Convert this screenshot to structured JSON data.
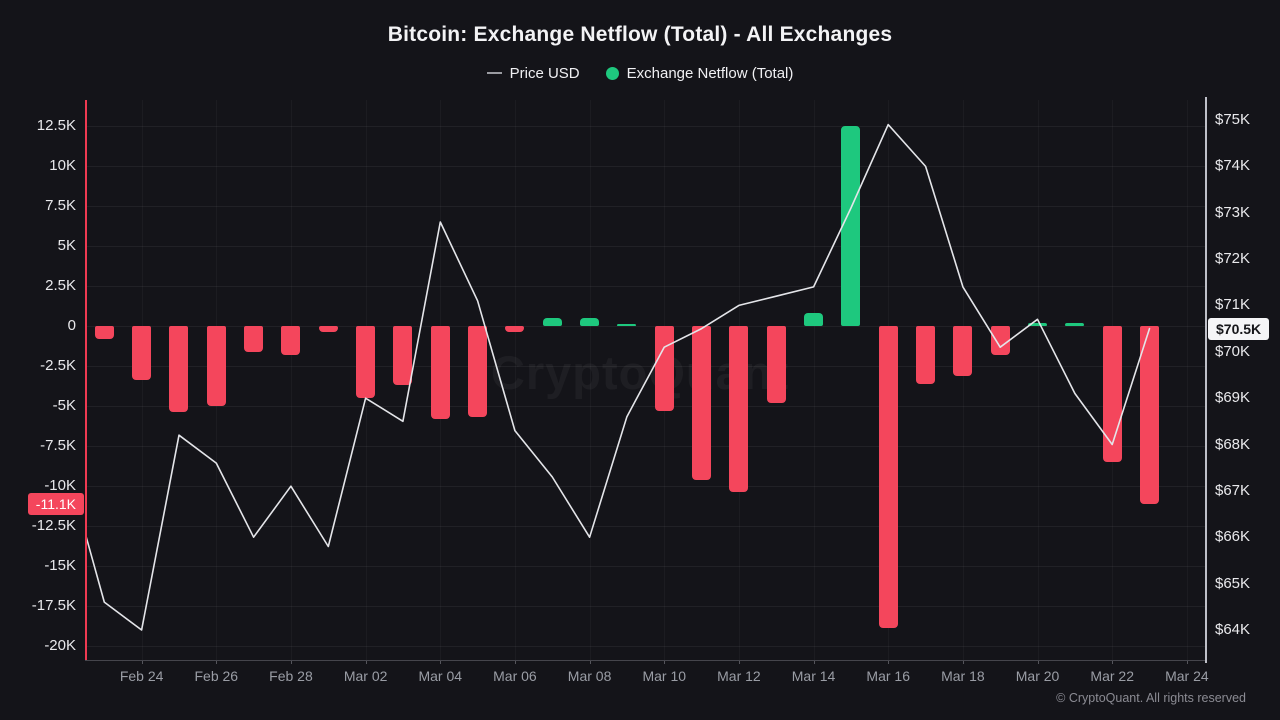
{
  "title": "Bitcoin: Exchange Netflow (Total) - All Exchanges",
  "legend": [
    {
      "label": "Price USD",
      "swatch": "line-dash",
      "color": "#9a9ba1"
    },
    {
      "label": "Exchange Netflow (Total)",
      "swatch": "dot",
      "color": "#1ec87e"
    }
  ],
  "watermark": "CryptoQuant",
  "footer": "© CryptoQuant. All rights reserved",
  "badges": {
    "netflow": "-11.1K",
    "netflow_value": -11.1,
    "price": "$70.5K",
    "price_value": 70.5
  },
  "colors": {
    "background": "#141419",
    "bar_negative": "#f4465c",
    "bar_positive": "#1ec87e",
    "price_line": "#e4e5e9",
    "crosshair": "#ef3a52",
    "badge_netflow_bg": "#f4465c",
    "badge_price_bg": "#f5f5f7"
  },
  "chart_data": {
    "type": "combo",
    "grid": true,
    "legend_position": "top",
    "categories": [
      "Feb 23",
      "Feb 24",
      "Feb 25",
      "Feb 26",
      "Feb 27",
      "Feb 28",
      "Mar 01",
      "Mar 02",
      "Mar 03",
      "Mar 04",
      "Mar 05",
      "Mar 06",
      "Mar 07",
      "Mar 08",
      "Mar 09",
      "Mar 10",
      "Mar 11",
      "Mar 12",
      "Mar 13",
      "Mar 14",
      "Mar 15",
      "Mar 16",
      "Mar 17",
      "Mar 18",
      "Mar 19",
      "Mar 20",
      "Mar 21",
      "Mar 22",
      "Mar 23",
      "Mar 24"
    ],
    "series": [
      {
        "name": "Exchange Netflow (Total)",
        "type": "bar",
        "axis": "left",
        "unit": "K BTC",
        "values": [
          -0.8,
          -3.4,
          -5.4,
          -5.0,
          -1.6,
          -1.8,
          -0.4,
          -4.5,
          -3.7,
          -5.8,
          -5.7,
          -0.4,
          0.5,
          0.5,
          0.15,
          -5.3,
          -9.6,
          -10.4,
          -4.8,
          0.8,
          12.5,
          -18.9,
          -3.6,
          -3.1,
          -1.8,
          0.2,
          0.2,
          -8.5,
          -11.1
        ]
      },
      {
        "name": "Price USD",
        "type": "line",
        "axis": "right",
        "unit": "$K",
        "lead_in_value": 67.5,
        "values": [
          64.6,
          64.0,
          68.2,
          67.6,
          66.0,
          67.1,
          65.8,
          69.0,
          68.5,
          72.8,
          71.1,
          68.3,
          67.3,
          66.0,
          68.6,
          70.1,
          70.5,
          71.0,
          71.2,
          71.4,
          73.1,
          74.9,
          74.0,
          71.4,
          70.1,
          70.7,
          69.1,
          68.0,
          70.5
        ]
      }
    ],
    "left_axis": {
      "tick_labels": [
        "12.5K",
        "10K",
        "7.5K",
        "5K",
        "2.5K",
        "0",
        "-2.5K",
        "-5K",
        "-7.5K",
        "-10K",
        "-12.5K",
        "-15K",
        "-17.5K",
        "-20K"
      ],
      "tick_values": [
        12.5,
        10,
        7.5,
        5,
        2.5,
        0,
        -2.5,
        -5,
        -7.5,
        -10,
        -12.5,
        -15,
        -17.5,
        -20
      ],
      "range": [
        -21.8,
        14.1
      ]
    },
    "right_axis": {
      "tick_labels": [
        "$75K",
        "$74K",
        "$73K",
        "$72K",
        "$71K",
        "$70K",
        "$69K",
        "$68K",
        "$67K",
        "$66K",
        "$65K",
        "$64K"
      ],
      "tick_values": [
        75,
        74,
        73,
        72,
        71,
        70,
        69,
        68,
        67,
        66,
        65,
        64
      ],
      "range": [
        63.4,
        75.4
      ]
    },
    "x_tick_labels": [
      "Feb 24",
      "Feb 26",
      "Feb 28",
      "Mar 02",
      "Mar 04",
      "Mar 06",
      "Mar 08",
      "Mar 10",
      "Mar 12",
      "Mar 14",
      "Mar 16",
      "Mar 18",
      "Mar 20",
      "Mar 22",
      "Mar 24"
    ],
    "x_tick_indices": [
      1,
      3,
      5,
      7,
      9,
      11,
      13,
      15,
      17,
      19,
      21,
      23,
      25,
      27,
      29
    ]
  }
}
